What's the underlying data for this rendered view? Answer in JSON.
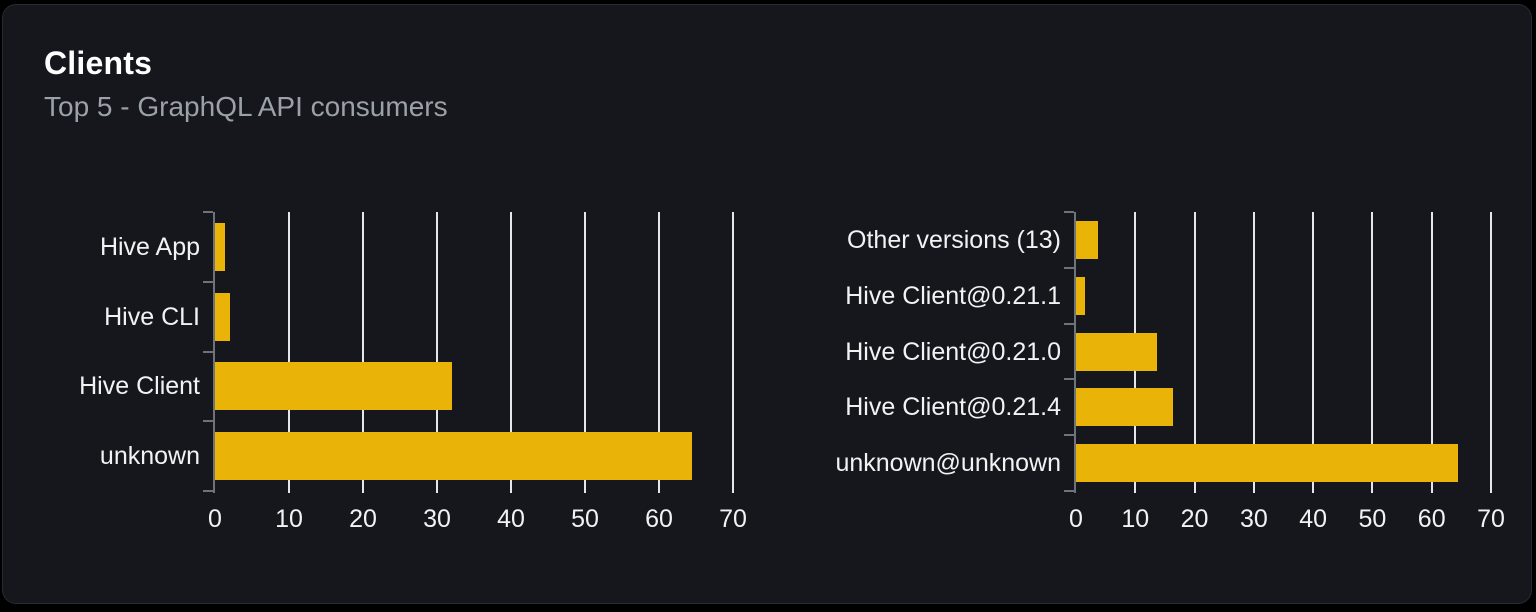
{
  "header": {
    "title": "Clients",
    "subtitle": "Top 5 - GraphQL API consumers"
  },
  "colors": {
    "page_bg": "#000000",
    "card_bg": "#15171c",
    "card_border": "#262a32",
    "title": "#ffffff",
    "subtitle": "#9ba1a8",
    "bar": "#eab308",
    "grid": "#e3e6ec",
    "axis": "#6e737b",
    "label": "#f1f2f4"
  },
  "chart_data": [
    {
      "type": "bar",
      "orientation": "horizontal",
      "name": "clients-by-name",
      "categories": [
        "Hive App",
        "Hive CLI",
        "Hive Client",
        "unknown"
      ],
      "values": [
        1.4,
        2,
        32,
        64.4
      ],
      "xlim": [
        0,
        70
      ],
      "xticks": [
        0,
        10,
        20,
        30,
        40,
        50,
        60,
        70
      ],
      "grid": true,
      "legend": "none",
      "bar_color": "#eab308"
    },
    {
      "type": "bar",
      "orientation": "horizontal",
      "name": "clients-by-version",
      "categories": [
        "Other versions (13)",
        "Hive Client@0.21.1",
        "Hive Client@0.21.0",
        "Hive Client@0.21.4",
        "unknown@unknown"
      ],
      "values": [
        3.7,
        1.5,
        13.6,
        16.3,
        64.4
      ],
      "xlim": [
        0,
        70
      ],
      "xticks": [
        0,
        10,
        20,
        30,
        40,
        50,
        60,
        70
      ],
      "grid": true,
      "legend": "none",
      "bar_color": "#eab308"
    }
  ]
}
